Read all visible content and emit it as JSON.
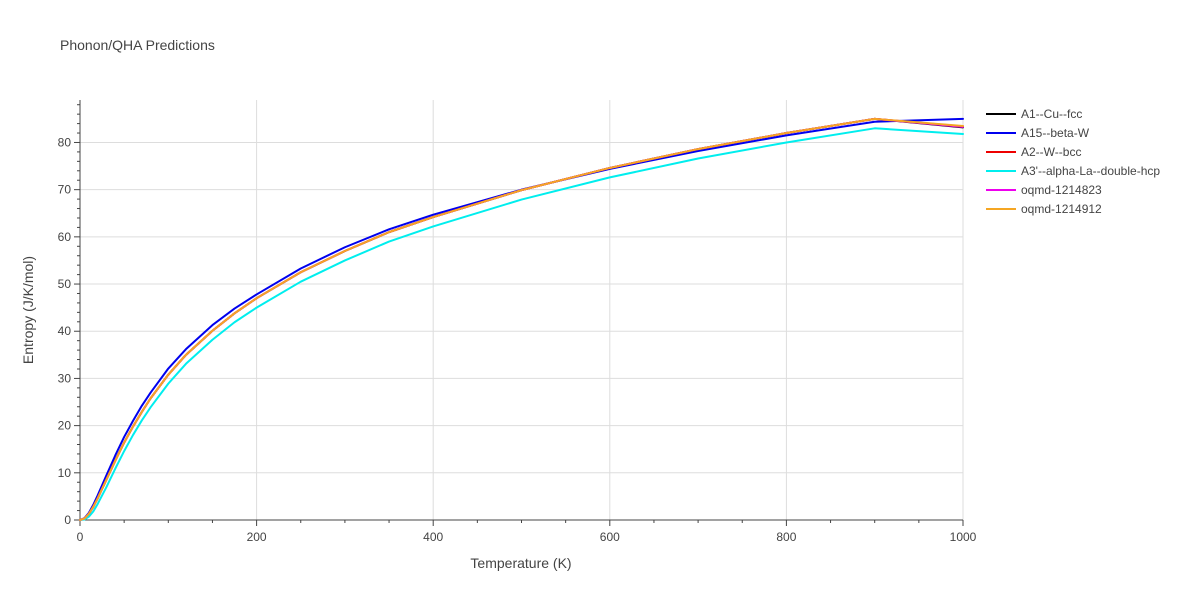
{
  "chart_data": {
    "type": "line",
    "title": "Phonon/QHA Predictions",
    "xlabel": "Temperature (K)",
    "ylabel": "Entropy (J/K/mol)",
    "xlim": [
      0,
      1000
    ],
    "ylim": [
      0,
      89
    ],
    "xticks": [
      0,
      200,
      400,
      600,
      800,
      1000
    ],
    "yticks": [
      0,
      10,
      20,
      30,
      40,
      50,
      60,
      70,
      80
    ],
    "grid": true,
    "legend_position": "right",
    "series": [
      {
        "name": "A1--Cu--fcc",
        "color": "#000000",
        "x": [
          0,
          5,
          10,
          15,
          20,
          30,
          40,
          50,
          60,
          70,
          80,
          100,
          120,
          150,
          175,
          200,
          250,
          300,
          350,
          400,
          500,
          600,
          700,
          800,
          900,
          1000
        ],
        "y": [
          0,
          0.3,
          1.3,
          2.8,
          4.6,
          8.6,
          12.6,
          16.4,
          19.8,
          22.9,
          25.8,
          30.8,
          35.0,
          40.1,
          43.8,
          47.0,
          52.5,
          57.0,
          61.0,
          64.2,
          69.9,
          74.6,
          78.6,
          82.0,
          85.0,
          83.2
        ]
      },
      {
        "name": "A15--beta-W",
        "color": "#0000ee",
        "x": [
          0,
          5,
          10,
          15,
          20,
          30,
          40,
          50,
          60,
          70,
          80,
          100,
          120,
          150,
          175,
          200,
          250,
          300,
          350,
          400,
          500,
          600,
          700,
          800,
          900,
          1000
        ],
        "y": [
          0,
          0.4,
          1.5,
          3.2,
          5.2,
          9.5,
          13.7,
          17.6,
          21.0,
          24.2,
          27.0,
          32.1,
          36.2,
          41.3,
          44.8,
          47.8,
          53.3,
          57.8,
          61.6,
          64.7,
          70.0,
          74.4,
          78.2,
          81.5,
          84.4,
          85.0
        ]
      },
      {
        "name": "A2--W--bcc",
        "color": "#ee0000",
        "x": [
          0,
          5,
          10,
          15,
          20,
          30,
          40,
          50,
          60,
          70,
          80,
          100,
          120,
          150,
          175,
          200,
          250,
          300,
          350,
          400,
          500,
          600,
          700,
          800,
          900,
          1000
        ],
        "y": [
          0,
          0.3,
          1.3,
          2.8,
          4.6,
          8.6,
          12.6,
          16.4,
          19.8,
          22.9,
          25.8,
          30.8,
          35.0,
          40.1,
          43.8,
          47.0,
          52.5,
          57.0,
          61.0,
          64.2,
          69.9,
          74.6,
          78.6,
          82.0,
          85.0,
          83.4
        ]
      },
      {
        "name": "A3'--alpha-La--double-hcp",
        "color": "#00eeee",
        "x": [
          0,
          5,
          10,
          15,
          20,
          30,
          40,
          50,
          60,
          70,
          80,
          100,
          120,
          150,
          175,
          200,
          250,
          300,
          350,
          400,
          500,
          600,
          700,
          800,
          900,
          1000
        ],
        "y": [
          0,
          0.1,
          0.7,
          1.8,
          3.4,
          7.0,
          10.9,
          14.6,
          18.0,
          21.1,
          23.9,
          28.9,
          33.1,
          38.2,
          41.9,
          45.0,
          50.5,
          55.0,
          59.0,
          62.2,
          67.9,
          72.6,
          76.6,
          80.0,
          83.0,
          81.8
        ]
      },
      {
        "name": "oqmd-1214823",
        "color": "#ee00ee",
        "x": [
          0,
          5,
          10,
          15,
          20,
          30,
          40,
          50,
          60,
          70,
          80,
          100,
          120,
          150,
          175,
          200,
          250,
          300,
          350,
          400,
          500,
          600,
          700,
          800,
          900,
          1000
        ],
        "y": [
          0,
          0.3,
          1.3,
          2.8,
          4.6,
          8.6,
          12.6,
          16.4,
          19.8,
          22.9,
          25.8,
          30.8,
          35.0,
          40.1,
          43.8,
          47.0,
          52.5,
          57.0,
          61.0,
          64.2,
          69.9,
          74.6,
          78.6,
          82.0,
          85.0,
          83.3
        ]
      },
      {
        "name": "oqmd-1214912",
        "color": "#f5a623",
        "x": [
          0,
          5,
          10,
          15,
          20,
          30,
          40,
          50,
          60,
          70,
          80,
          100,
          120,
          150,
          175,
          200,
          250,
          300,
          350,
          400,
          500,
          600,
          700,
          800,
          900,
          1000
        ],
        "y": [
          0,
          0.3,
          1.3,
          2.8,
          4.6,
          8.6,
          12.6,
          16.4,
          19.8,
          22.9,
          25.8,
          30.8,
          35.0,
          40.1,
          43.8,
          47.0,
          52.5,
          57.0,
          61.0,
          64.2,
          69.9,
          74.6,
          78.6,
          82.0,
          85.0,
          83.5
        ]
      }
    ]
  }
}
